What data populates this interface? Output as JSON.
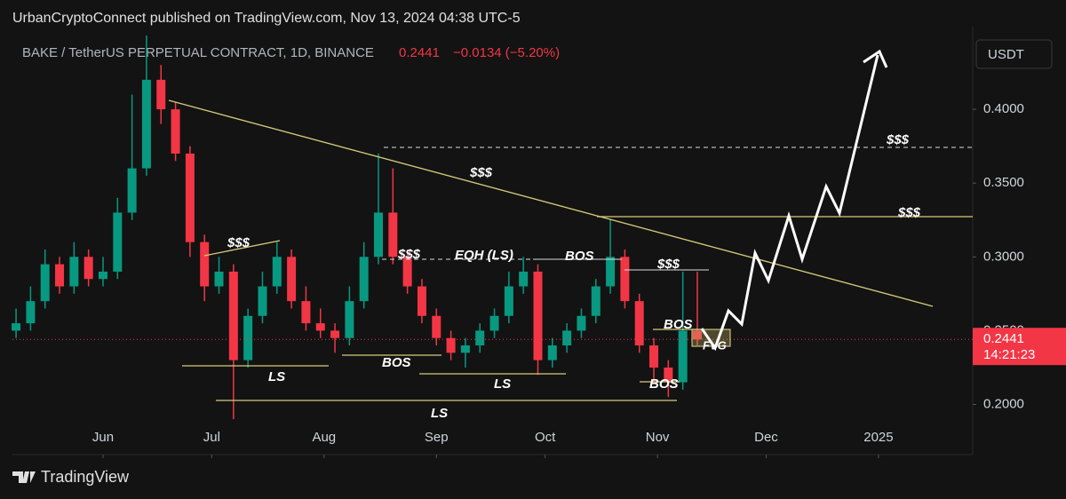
{
  "header": {
    "publisher": "UrbanCryptoConnect published on TradingView.com, Nov 13, 2024 04:38 UTC-5",
    "logo": "TradingView"
  },
  "chart_data": {
    "type": "candlestick",
    "title": "BAKE / TetherUS PERPETUAL CONTRACT, 1D, BINANCE",
    "change_text": "−0.0134 (−5.20%)",
    "currency": "USDT",
    "countdown": "14:21:23",
    "x": [
      -24,
      -20,
      -16,
      -12,
      -8,
      -4,
      0,
      4,
      8,
      12,
      16,
      20,
      24,
      28,
      32,
      36,
      40,
      44,
      48,
      52,
      56,
      60,
      64,
      68,
      72,
      76,
      80,
      84,
      88,
      92,
      96,
      100,
      104,
      108,
      112,
      116,
      120,
      124,
      128,
      132,
      136,
      140,
      144,
      148,
      152,
      156,
      160,
      164
    ],
    "open": [
      0.25,
      0.255,
      0.27,
      0.295,
      0.28,
      0.3,
      0.285,
      0.29,
      0.33,
      0.36,
      0.42,
      0.4,
      0.37,
      0.31,
      0.28,
      0.29,
      0.23,
      0.26,
      0.28,
      0.3,
      0.27,
      0.255,
      0.25,
      0.245,
      0.27,
      0.3,
      0.33,
      0.3,
      0.28,
      0.26,
      0.245,
      0.235,
      0.24,
      0.25,
      0.26,
      0.28,
      0.29,
      0.23,
      0.24,
      0.25,
      0.26,
      0.28,
      0.3,
      0.27,
      0.24,
      0.225,
      0.215,
      0.25
    ],
    "high": [
      0.265,
      0.28,
      0.305,
      0.3,
      0.31,
      0.305,
      0.3,
      0.34,
      0.41,
      0.45,
      0.43,
      0.405,
      0.375,
      0.315,
      0.3,
      0.295,
      0.265,
      0.29,
      0.31,
      0.305,
      0.28,
      0.265,
      0.255,
      0.28,
      0.31,
      0.37,
      0.36,
      0.305,
      0.285,
      0.265,
      0.25,
      0.245,
      0.255,
      0.265,
      0.29,
      0.3,
      0.295,
      0.245,
      0.255,
      0.265,
      0.285,
      0.325,
      0.305,
      0.275,
      0.245,
      0.23,
      0.29,
      0.29
    ],
    "low": [
      0.245,
      0.25,
      0.265,
      0.275,
      0.275,
      0.28,
      0.28,
      0.285,
      0.325,
      0.355,
      0.39,
      0.365,
      0.3,
      0.27,
      0.275,
      0.19,
      0.225,
      0.255,
      0.275,
      0.265,
      0.25,
      0.245,
      0.235,
      0.24,
      0.265,
      0.295,
      0.295,
      0.275,
      0.255,
      0.24,
      0.23,
      0.225,
      0.235,
      0.245,
      0.255,
      0.275,
      0.22,
      0.225,
      0.235,
      0.245,
      0.255,
      0.275,
      0.265,
      0.235,
      0.215,
      0.205,
      0.21,
      0.24
    ],
    "close": [
      0.255,
      0.27,
      0.295,
      0.28,
      0.3,
      0.285,
      0.29,
      0.33,
      0.36,
      0.42,
      0.4,
      0.37,
      0.31,
      0.28,
      0.29,
      0.23,
      0.26,
      0.28,
      0.3,
      0.27,
      0.255,
      0.25,
      0.245,
      0.27,
      0.3,
      0.33,
      0.3,
      0.28,
      0.26,
      0.245,
      0.235,
      0.24,
      0.25,
      0.26,
      0.28,
      0.29,
      0.23,
      0.24,
      0.25,
      0.26,
      0.28,
      0.3,
      0.27,
      0.24,
      0.225,
      0.215,
      0.25,
      0.2441
    ],
    "up_color": "#089981",
    "down_color": "#f23645",
    "xlim": [
      -25,
      240
    ],
    "xticks": [
      {
        "value": 0,
        "label": "Jun"
      },
      {
        "value": 30,
        "label": "Jul"
      },
      {
        "value": 61,
        "label": "Aug"
      },
      {
        "value": 92,
        "label": "Sep"
      },
      {
        "value": 122,
        "label": "Oct"
      },
      {
        "value": 153,
        "label": "Nov"
      },
      {
        "value": 183,
        "label": "Dec"
      },
      {
        "value": 214,
        "label": "2025"
      }
    ],
    "ylim": [
      0.166,
      0.45
    ],
    "yticks": [
      {
        "value": 0.2,
        "label": "0.2000"
      },
      {
        "value": 0.25,
        "label": "0.2500"
      },
      {
        "value": 0.3,
        "label": "0.3000"
      },
      {
        "value": 0.35,
        "label": "0.3500"
      },
      {
        "value": 0.4,
        "label": "0.4000"
      }
    ],
    "annotations": [
      "$$$",
      "$$$",
      "$$$",
      "EQH (LS)",
      "BOS",
      "$$$",
      "$$$",
      "$$$",
      "BOS",
      "BOS",
      "BOS",
      "LS",
      "LS",
      "LS",
      "FVG"
    ]
  }
}
